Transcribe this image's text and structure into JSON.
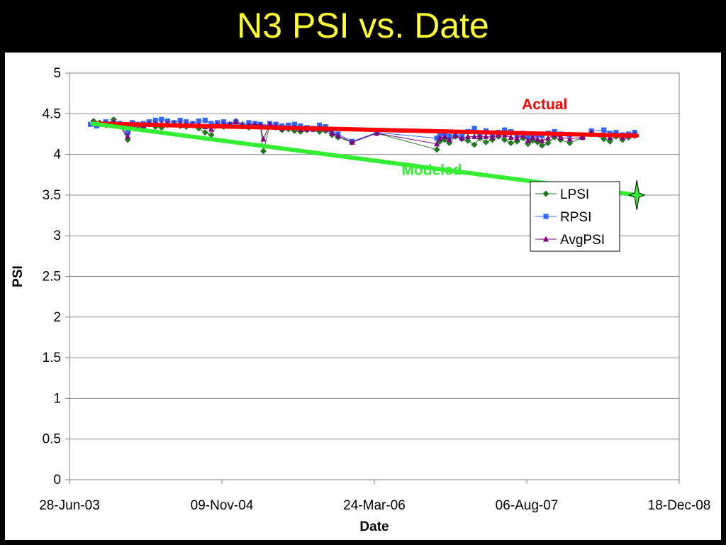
{
  "slide": {
    "title": "N3 PSI vs. Date"
  },
  "colors": {
    "background": "#000000",
    "title": "#FFFF33",
    "lpsi": "#1F7A1F",
    "rpsi": "#3366FF",
    "avgpsi": "#800080",
    "actual": "#FF0000",
    "modeled": "#33EE33"
  },
  "chart_data": {
    "type": "line",
    "title": "",
    "xlabel": "Date",
    "ylabel": "PSI",
    "xlim": [
      "2003-06-28",
      "2008-12-18"
    ],
    "ylim": [
      0,
      5
    ],
    "x_ticks": [
      "28-Jun-03",
      "09-Nov-04",
      "24-Mar-06",
      "06-Aug-07",
      "18-Dec-08"
    ],
    "y_ticks": [
      "0",
      "0.5",
      "1",
      "1.5",
      "2",
      "2.5",
      "3",
      "3.5",
      "4",
      "4.5",
      "5"
    ],
    "grid": "horizontal",
    "legend": {
      "position": "right",
      "entries": [
        "LPSI",
        "RPSI",
        "AvgPSI"
      ]
    },
    "series": [
      {
        "name": "LPSI",
        "marker": "diamond",
        "x": [
          "2003-09-15",
          "2003-10-05",
          "2003-10-25",
          "2003-11-20",
          "2003-12-10",
          "2004-01-05",
          "2004-01-20",
          "2004-02-05",
          "2004-02-25",
          "2004-03-15",
          "2004-04-05",
          "2004-04-25",
          "2004-05-15",
          "2004-06-05",
          "2004-06-25",
          "2004-07-15",
          "2004-08-05",
          "2004-08-25",
          "2004-09-15",
          "2004-10-05",
          "2004-10-25",
          "2004-11-15",
          "2004-12-05",
          "2004-12-25",
          "2005-01-15",
          "2005-02-05",
          "2005-02-25",
          "2005-03-15",
          "2005-03-25",
          "2005-04-15",
          "2005-05-05",
          "2005-05-25",
          "2005-06-15",
          "2005-07-05",
          "2005-07-25",
          "2005-08-15",
          "2005-09-05",
          "2005-09-25",
          "2005-10-15",
          "2005-11-05",
          "2005-11-25",
          "2006-01-10",
          "2006-04-01",
          "2006-10-15",
          "2006-10-25",
          "2006-11-10",
          "2006-11-25",
          "2006-12-15",
          "2007-01-05",
          "2007-01-25",
          "2007-02-15",
          "2007-03-05",
          "2007-03-25",
          "2007-04-15",
          "2007-05-05",
          "2007-05-25",
          "2007-06-15",
          "2007-07-05",
          "2007-07-25",
          "2007-08-10",
          "2007-08-25",
          "2007-09-10",
          "2007-09-25",
          "2007-10-15",
          "2007-11-05",
          "2007-11-25",
          "2007-12-25",
          "2008-02-05",
          "2008-03-05",
          "2008-04-15",
          "2008-05-05",
          "2008-05-25",
          "2008-06-15",
          "2008-07-05",
          "2008-07-25"
        ],
        "y": [
          4.41,
          4.39,
          4.36,
          4.43,
          4.36,
          4.18,
          4.36,
          4.35,
          4.33,
          4.37,
          4.34,
          4.33,
          4.36,
          4.37,
          4.35,
          4.34,
          4.36,
          4.32,
          4.27,
          4.24,
          4.36,
          4.34,
          4.37,
          4.41,
          4.37,
          4.33,
          4.36,
          4.35,
          4.04,
          4.36,
          4.33,
          4.3,
          4.31,
          4.29,
          4.28,
          4.3,
          4.31,
          4.28,
          4.29,
          4.24,
          4.21,
          4.15,
          4.26,
          4.06,
          4.16,
          4.18,
          4.14,
          4.22,
          4.19,
          4.17,
          4.12,
          4.2,
          4.15,
          4.18,
          4.22,
          4.18,
          4.14,
          4.16,
          4.2,
          4.13,
          4.17,
          4.15,
          4.11,
          4.14,
          4.21,
          4.18,
          4.14,
          4.21,
          4.25,
          4.19,
          4.16,
          4.22,
          4.18,
          4.21,
          4.23
        ]
      },
      {
        "name": "RPSI",
        "marker": "square",
        "x": [
          "2003-09-05",
          "2003-09-25",
          "2003-10-25",
          "2003-11-20",
          "2003-12-10",
          "2004-01-05",
          "2004-01-20",
          "2004-02-05",
          "2004-02-25",
          "2004-03-15",
          "2004-04-05",
          "2004-04-25",
          "2004-05-15",
          "2004-06-05",
          "2004-06-25",
          "2004-07-15",
          "2004-08-05",
          "2004-08-25",
          "2004-09-15",
          "2004-10-05",
          "2004-10-25",
          "2004-11-15",
          "2004-12-05",
          "2004-12-25",
          "2005-01-15",
          "2005-02-05",
          "2005-02-25",
          "2005-03-15",
          "2005-03-25",
          "2005-04-15",
          "2005-05-05",
          "2005-05-25",
          "2005-06-15",
          "2005-07-05",
          "2005-07-25",
          "2005-08-15",
          "2005-09-05",
          "2005-09-25",
          "2005-10-15",
          "2005-11-05",
          "2005-11-25",
          "2006-01-10",
          "2006-04-01",
          "2006-10-15",
          "2006-10-25",
          "2006-11-10",
          "2006-11-25",
          "2006-12-15",
          "2007-01-05",
          "2007-01-25",
          "2007-02-15",
          "2007-03-05",
          "2007-03-25",
          "2007-04-15",
          "2007-05-05",
          "2007-05-25",
          "2007-06-15",
          "2007-07-05",
          "2007-07-25",
          "2007-08-10",
          "2007-08-25",
          "2007-09-10",
          "2007-09-25",
          "2007-10-15",
          "2007-11-05",
          "2007-11-25",
          "2007-12-25",
          "2008-02-05",
          "2008-03-05",
          "2008-04-15",
          "2008-05-05",
          "2008-05-25",
          "2008-06-15",
          "2008-07-05",
          "2008-07-25"
        ],
        "y": [
          4.37,
          4.35,
          4.4,
          4.38,
          4.38,
          4.27,
          4.39,
          4.37,
          4.38,
          4.4,
          4.42,
          4.43,
          4.41,
          4.39,
          4.42,
          4.4,
          4.38,
          4.41,
          4.42,
          4.38,
          4.39,
          4.4,
          4.37,
          4.4,
          4.36,
          4.39,
          4.38,
          4.37,
          4.34,
          4.38,
          4.37,
          4.35,
          4.36,
          4.37,
          4.35,
          4.33,
          4.32,
          4.36,
          4.34,
          4.28,
          4.25,
          4.16,
          4.27,
          4.2,
          4.24,
          4.26,
          4.22,
          4.25,
          4.22,
          4.28,
          4.32,
          4.25,
          4.29,
          4.24,
          4.27,
          4.3,
          4.28,
          4.24,
          4.26,
          4.22,
          4.25,
          4.24,
          4.23,
          4.26,
          4.28,
          4.25,
          4.24,
          4.22,
          4.29,
          4.3,
          4.26,
          4.27,
          4.24,
          4.25,
          4.27
        ]
      },
      {
        "name": "AvgPSI",
        "marker": "triangle",
        "x": [
          "2003-09-10",
          "2003-10-05",
          "2003-10-25",
          "2003-11-20",
          "2003-12-10",
          "2004-01-05",
          "2004-01-20",
          "2004-02-05",
          "2004-02-25",
          "2004-03-15",
          "2004-04-05",
          "2004-04-25",
          "2004-05-15",
          "2004-06-05",
          "2004-06-25",
          "2004-07-15",
          "2004-08-05",
          "2004-08-25",
          "2004-09-15",
          "2004-10-05",
          "2004-10-25",
          "2004-11-15",
          "2004-12-05",
          "2004-12-25",
          "2005-01-15",
          "2005-02-05",
          "2005-02-25",
          "2005-03-15",
          "2005-03-25",
          "2005-04-15",
          "2005-05-05",
          "2005-05-25",
          "2005-06-15",
          "2005-07-05",
          "2005-07-25",
          "2005-08-15",
          "2005-09-05",
          "2005-09-25",
          "2005-10-15",
          "2005-11-05",
          "2005-11-25",
          "2006-01-10",
          "2006-04-01",
          "2006-10-15",
          "2006-10-25",
          "2006-11-10",
          "2006-11-25",
          "2006-12-15",
          "2007-01-05",
          "2007-01-25",
          "2007-02-15",
          "2007-03-05",
          "2007-03-25",
          "2007-04-15",
          "2007-05-05",
          "2007-05-25",
          "2007-06-15",
          "2007-07-05",
          "2007-07-25",
          "2007-08-10",
          "2007-08-25",
          "2007-09-10",
          "2007-09-25",
          "2007-10-15",
          "2007-11-05",
          "2007-11-25",
          "2007-12-25",
          "2008-02-05",
          "2008-03-05",
          "2008-04-15",
          "2008-05-05",
          "2008-05-25",
          "2008-06-15",
          "2008-07-05",
          "2008-07-25"
        ],
        "y": [
          4.39,
          4.37,
          4.38,
          4.4,
          4.37,
          4.22,
          4.37,
          4.36,
          4.35,
          4.38,
          4.38,
          4.38,
          4.38,
          4.38,
          4.38,
          4.37,
          4.37,
          4.36,
          4.34,
          4.31,
          4.37,
          4.37,
          4.37,
          4.4,
          4.36,
          4.36,
          4.37,
          4.36,
          4.19,
          4.37,
          4.35,
          4.32,
          4.33,
          4.33,
          4.31,
          4.31,
          4.31,
          4.32,
          4.31,
          4.26,
          4.23,
          4.15,
          4.26,
          4.13,
          4.2,
          4.22,
          4.18,
          4.23,
          4.2,
          4.22,
          4.22,
          4.22,
          4.22,
          4.21,
          4.24,
          4.24,
          4.21,
          4.2,
          4.23,
          4.17,
          4.21,
          4.19,
          4.17,
          4.2,
          4.24,
          4.21,
          4.19,
          4.21,
          4.27,
          4.24,
          4.21,
          4.24,
          4.21,
          4.23,
          4.25
        ]
      }
    ],
    "annotations": [
      {
        "label": "Actual",
        "color": "#FF0000",
        "from": [
          "2003-09-10",
          4.38
        ],
        "to": [
          "2008-08-01",
          4.23
        ]
      },
      {
        "label": "Modeled",
        "color": "#33EE33",
        "from": [
          "2003-09-10",
          4.38
        ],
        "to": [
          "2008-08-01",
          3.5
        ],
        "end_marker": "star"
      }
    ]
  }
}
